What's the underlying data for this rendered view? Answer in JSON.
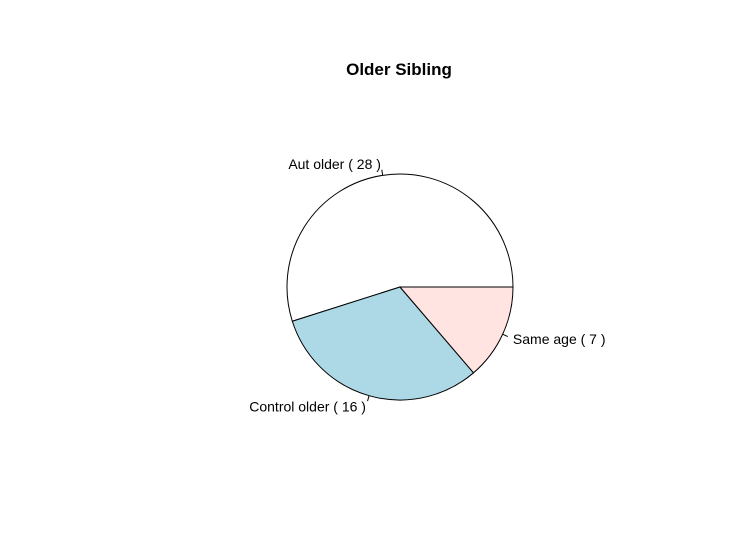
{
  "chart_data": {
    "type": "pie",
    "title": "Older Sibling",
    "start_angle_deg": 0,
    "direction": "counterclockwise",
    "slices": [
      {
        "label": "Aut older ( 28 )",
        "value": 28,
        "color": "#FFFFFF"
      },
      {
        "label": "Control older ( 16 )",
        "value": 16,
        "color": "#ADD8E6"
      },
      {
        "label": "Same age ( 7 )",
        "value": 7,
        "color": "#FFE4E1"
      }
    ]
  }
}
